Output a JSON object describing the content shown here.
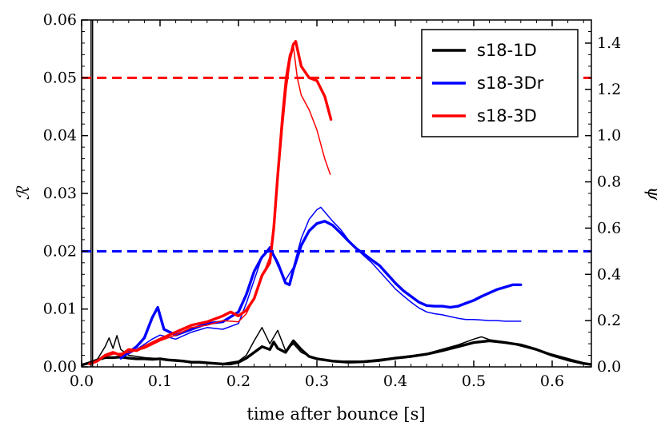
{
  "chart_data": {
    "type": "line",
    "xlabel": "time after bounce [s]",
    "ylabel": "ℛ",
    "y2label": "ψ",
    "xlim": [
      0.0,
      0.65
    ],
    "ylim": [
      0.0,
      0.06
    ],
    "y2lim": [
      0.0,
      1.5
    ],
    "xticks": [
      "0.0",
      "0.1",
      "0.2",
      "0.3",
      "0.4",
      "0.5",
      "0.6"
    ],
    "yticks": [
      "0.00",
      "0.01",
      "0.02",
      "0.03",
      "0.04",
      "0.05",
      "0.06"
    ],
    "y2ticks": [
      "0.0",
      "0.2",
      "0.4",
      "0.6",
      "0.8",
      "1.0",
      "1.2",
      "1.4"
    ],
    "grid": false,
    "legend_position": "top-right",
    "colors": {
      "s18-1D": "#000000",
      "s18-3Dr": "#0000ff",
      "s18-3D": "#ff0000"
    },
    "hlines": [
      {
        "name": "red-dashed-threshold",
        "y": 0.05,
        "color": "#ff0000"
      },
      {
        "name": "blue-dashed-threshold",
        "y": 0.02,
        "color": "#0000ff"
      }
    ],
    "series": [
      {
        "name": "s18-1D",
        "legend": true,
        "axis": "left",
        "weight": "thick",
        "points": [
          [
            0.0,
            0.0003
          ],
          [
            0.01,
            0.0007
          ],
          [
            0.02,
            0.0012
          ],
          [
            0.03,
            0.0016
          ],
          [
            0.04,
            0.0016
          ],
          [
            0.05,
            0.0017
          ],
          [
            0.06,
            0.0015
          ],
          [
            0.07,
            0.0014
          ],
          [
            0.08,
            0.0014
          ],
          [
            0.09,
            0.0013
          ],
          [
            0.1,
            0.0014
          ],
          [
            0.11,
            0.0012
          ],
          [
            0.12,
            0.0011
          ],
          [
            0.13,
            0.001
          ],
          [
            0.14,
            0.0008
          ],
          [
            0.15,
            0.0008
          ],
          [
            0.16,
            0.0007
          ],
          [
            0.17,
            0.0006
          ],
          [
            0.18,
            0.0005
          ],
          [
            0.19,
            0.0005
          ],
          [
            0.2,
            0.0008
          ],
          [
            0.21,
            0.0015
          ],
          [
            0.22,
            0.0025
          ],
          [
            0.23,
            0.0035
          ],
          [
            0.24,
            0.003
          ],
          [
            0.245,
            0.0043
          ],
          [
            0.25,
            0.0032
          ],
          [
            0.26,
            0.0025
          ],
          [
            0.27,
            0.0045
          ],
          [
            0.28,
            0.003
          ],
          [
            0.29,
            0.0018
          ],
          [
            0.3,
            0.0014
          ],
          [
            0.31,
            0.0012
          ],
          [
            0.32,
            0.001
          ],
          [
            0.34,
            0.0008
          ],
          [
            0.36,
            0.0009
          ],
          [
            0.38,
            0.0011
          ],
          [
            0.4,
            0.0015
          ],
          [
            0.42,
            0.0018
          ],
          [
            0.44,
            0.0022
          ],
          [
            0.46,
            0.0028
          ],
          [
            0.48,
            0.0035
          ],
          [
            0.5,
            0.0042
          ],
          [
            0.52,
            0.0045
          ],
          [
            0.54,
            0.0042
          ],
          [
            0.56,
            0.0038
          ],
          [
            0.58,
            0.003
          ],
          [
            0.6,
            0.002
          ],
          [
            0.62,
            0.0012
          ],
          [
            0.64,
            0.0006
          ],
          [
            0.65,
            0.0004
          ]
        ]
      },
      {
        "name": "s18-1D-thin",
        "legend": false,
        "axis": "left",
        "weight": "thin",
        "color_of": "s18-1D",
        "points": [
          [
            0.0,
            0.0004
          ],
          [
            0.01,
            0.0008
          ],
          [
            0.02,
            0.0013
          ],
          [
            0.03,
            0.0035
          ],
          [
            0.035,
            0.005
          ],
          [
            0.04,
            0.0032
          ],
          [
            0.045,
            0.0054
          ],
          [
            0.05,
            0.003
          ],
          [
            0.06,
            0.002
          ],
          [
            0.08,
            0.0016
          ],
          [
            0.1,
            0.0014
          ],
          [
            0.12,
            0.0012
          ],
          [
            0.14,
            0.0009
          ],
          [
            0.16,
            0.0007
          ],
          [
            0.18,
            0.0006
          ],
          [
            0.2,
            0.001
          ],
          [
            0.21,
            0.002
          ],
          [
            0.22,
            0.0045
          ],
          [
            0.23,
            0.0068
          ],
          [
            0.24,
            0.004
          ],
          [
            0.25,
            0.0063
          ],
          [
            0.26,
            0.0028
          ],
          [
            0.27,
            0.004
          ],
          [
            0.28,
            0.0025
          ],
          [
            0.3,
            0.0013
          ],
          [
            0.32,
            0.001
          ],
          [
            0.36,
            0.001
          ],
          [
            0.4,
            0.0016
          ],
          [
            0.44,
            0.0023
          ],
          [
            0.48,
            0.0038
          ],
          [
            0.5,
            0.0048
          ],
          [
            0.51,
            0.0052
          ],
          [
            0.52,
            0.0047
          ],
          [
            0.54,
            0.0043
          ],
          [
            0.56,
            0.0036
          ],
          [
            0.6,
            0.0022
          ],
          [
            0.64,
            0.0007
          ]
        ]
      },
      {
        "name": "s18-3Dr",
        "legend": true,
        "axis": "left",
        "weight": "thick",
        "points": [
          [
            0.05,
            0.0015
          ],
          [
            0.06,
            0.0025
          ],
          [
            0.07,
            0.0035
          ],
          [
            0.08,
            0.005
          ],
          [
            0.09,
            0.0085
          ],
          [
            0.097,
            0.0103
          ],
          [
            0.105,
            0.0065
          ],
          [
            0.12,
            0.0055
          ],
          [
            0.14,
            0.0065
          ],
          [
            0.16,
            0.0075
          ],
          [
            0.18,
            0.0078
          ],
          [
            0.2,
            0.0095
          ],
          [
            0.21,
            0.0125
          ],
          [
            0.22,
            0.0165
          ],
          [
            0.23,
            0.019
          ],
          [
            0.24,
            0.0205
          ],
          [
            0.25,
            0.018
          ],
          [
            0.26,
            0.0145
          ],
          [
            0.265,
            0.0142
          ],
          [
            0.27,
            0.0168
          ],
          [
            0.28,
            0.021
          ],
          [
            0.29,
            0.0235
          ],
          [
            0.3,
            0.0248
          ],
          [
            0.31,
            0.0252
          ],
          [
            0.32,
            0.0245
          ],
          [
            0.33,
            0.0232
          ],
          [
            0.34,
            0.0218
          ],
          [
            0.35,
            0.0205
          ],
          [
            0.36,
            0.0195
          ],
          [
            0.37,
            0.0185
          ],
          [
            0.38,
            0.0175
          ],
          [
            0.39,
            0.016
          ],
          [
            0.4,
            0.0145
          ],
          [
            0.41,
            0.0132
          ],
          [
            0.42,
            0.0122
          ],
          [
            0.43,
            0.0112
          ],
          [
            0.44,
            0.0106
          ],
          [
            0.45,
            0.0105
          ],
          [
            0.46,
            0.0105
          ],
          [
            0.47,
            0.0103
          ],
          [
            0.48,
            0.0105
          ],
          [
            0.49,
            0.011
          ],
          [
            0.5,
            0.0115
          ],
          [
            0.51,
            0.0122
          ],
          [
            0.52,
            0.0128
          ],
          [
            0.53,
            0.0134
          ],
          [
            0.54,
            0.0138
          ],
          [
            0.55,
            0.0142
          ],
          [
            0.56,
            0.0142
          ]
        ]
      },
      {
        "name": "s18-3Dr-thin",
        "legend": false,
        "axis": "left",
        "weight": "thin",
        "color_of": "s18-3Dr",
        "points": [
          [
            0.05,
            0.0015
          ],
          [
            0.07,
            0.003
          ],
          [
            0.09,
            0.0048
          ],
          [
            0.1,
            0.0055
          ],
          [
            0.12,
            0.0048
          ],
          [
            0.14,
            0.006
          ],
          [
            0.16,
            0.0068
          ],
          [
            0.18,
            0.0065
          ],
          [
            0.2,
            0.0075
          ],
          [
            0.21,
            0.011
          ],
          [
            0.22,
            0.015
          ],
          [
            0.23,
            0.019
          ],
          [
            0.24,
            0.0208
          ],
          [
            0.25,
            0.0175
          ],
          [
            0.26,
            0.015
          ],
          [
            0.27,
            0.0172
          ],
          [
            0.28,
            0.0222
          ],
          [
            0.29,
            0.0255
          ],
          [
            0.3,
            0.0272
          ],
          [
            0.305,
            0.0276
          ],
          [
            0.31,
            0.0268
          ],
          [
            0.32,
            0.0252
          ],
          [
            0.33,
            0.0238
          ],
          [
            0.34,
            0.022
          ],
          [
            0.35,
            0.0205
          ],
          [
            0.36,
            0.0192
          ],
          [
            0.37,
            0.018
          ],
          [
            0.38,
            0.0165
          ],
          [
            0.39,
            0.015
          ],
          [
            0.4,
            0.0135
          ],
          [
            0.41,
            0.0123
          ],
          [
            0.42,
            0.0112
          ],
          [
            0.43,
            0.0102
          ],
          [
            0.44,
            0.0095
          ],
          [
            0.45,
            0.0092
          ],
          [
            0.46,
            0.009
          ],
          [
            0.47,
            0.0087
          ],
          [
            0.48,
            0.0084
          ],
          [
            0.49,
            0.0082
          ],
          [
            0.5,
            0.0082
          ],
          [
            0.51,
            0.0081
          ],
          [
            0.52,
            0.008
          ],
          [
            0.53,
            0.008
          ],
          [
            0.54,
            0.0079
          ],
          [
            0.55,
            0.0079
          ],
          [
            0.56,
            0.0079
          ]
        ]
      },
      {
        "name": "s18-3D",
        "legend": true,
        "axis": "left",
        "weight": "thick",
        "points": [
          [
            0.01,
            0.0005
          ],
          [
            0.02,
            0.001
          ],
          [
            0.03,
            0.002
          ],
          [
            0.04,
            0.0025
          ],
          [
            0.05,
            0.002
          ],
          [
            0.06,
            0.003
          ],
          [
            0.07,
            0.0028
          ],
          [
            0.08,
            0.0035
          ],
          [
            0.1,
            0.0048
          ],
          [
            0.12,
            0.006
          ],
          [
            0.14,
            0.0072
          ],
          [
            0.16,
            0.0078
          ],
          [
            0.18,
            0.0088
          ],
          [
            0.19,
            0.0095
          ],
          [
            0.2,
            0.0088
          ],
          [
            0.21,
            0.0098
          ],
          [
            0.22,
            0.0118
          ],
          [
            0.23,
            0.0158
          ],
          [
            0.24,
            0.018
          ],
          [
            0.245,
            0.024
          ],
          [
            0.25,
            0.033
          ],
          [
            0.255,
            0.041
          ],
          [
            0.26,
            0.048
          ],
          [
            0.265,
            0.053
          ],
          [
            0.27,
            0.0558
          ],
          [
            0.273,
            0.0563
          ],
          [
            0.28,
            0.052
          ],
          [
            0.29,
            0.05
          ],
          [
            0.3,
            0.0495
          ],
          [
            0.31,
            0.0468
          ],
          [
            0.318,
            0.0428
          ]
        ]
      },
      {
        "name": "s18-3D-thin",
        "legend": false,
        "axis": "left",
        "weight": "thin",
        "color_of": "s18-3D",
        "points": [
          [
            0.01,
            0.0005
          ],
          [
            0.02,
            0.001
          ],
          [
            0.03,
            0.0018
          ],
          [
            0.04,
            0.0022
          ],
          [
            0.06,
            0.0025
          ],
          [
            0.08,
            0.0032
          ],
          [
            0.1,
            0.0045
          ],
          [
            0.12,
            0.0055
          ],
          [
            0.14,
            0.0068
          ],
          [
            0.16,
            0.0072
          ],
          [
            0.18,
            0.008
          ],
          [
            0.2,
            0.0078
          ],
          [
            0.21,
            0.0092
          ],
          [
            0.22,
            0.012
          ],
          [
            0.23,
            0.0155
          ],
          [
            0.24,
            0.019
          ],
          [
            0.245,
            0.025
          ],
          [
            0.25,
            0.034
          ],
          [
            0.255,
            0.043
          ],
          [
            0.26,
            0.05
          ],
          [
            0.265,
            0.054
          ],
          [
            0.27,
            0.0555
          ],
          [
            0.275,
            0.05
          ],
          [
            0.28,
            0.047
          ],
          [
            0.29,
            0.0445
          ],
          [
            0.3,
            0.041
          ],
          [
            0.31,
            0.036
          ],
          [
            0.317,
            0.0333
          ]
        ]
      },
      {
        "name": "psi-spike",
        "legend": false,
        "axis": "left",
        "weight": "thin",
        "color_of": "s18-1D",
        "points": [
          [
            0.012,
            0.0
          ],
          [
            0.012,
            0.0605
          ],
          [
            0.014,
            0.0605
          ],
          [
            0.014,
            0.0
          ]
        ]
      }
    ]
  }
}
